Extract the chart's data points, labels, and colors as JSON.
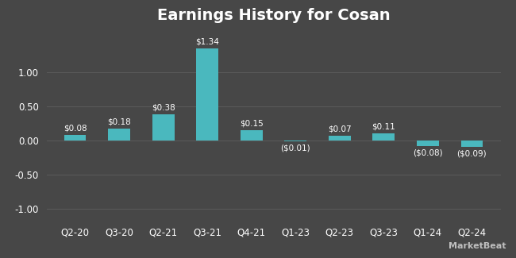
{
  "title": "Earnings History for Cosan",
  "categories": [
    "Q2-20",
    "Q3-20",
    "Q2-21",
    "Q3-21",
    "Q4-21",
    "Q1-23",
    "Q2-23",
    "Q3-23",
    "Q1-24",
    "Q2-24"
  ],
  "values": [
    0.08,
    0.18,
    0.38,
    1.34,
    0.15,
    -0.01,
    0.07,
    0.11,
    -0.08,
    -0.09
  ],
  "labels": [
    "$0.08",
    "$0.18",
    "$0.38",
    "$1.34",
    "$0.15",
    "($0.01)",
    "$0.07",
    "$0.11",
    "($0.08)",
    "($0.09)"
  ],
  "bar_color": "#4ab8be",
  "background_color": "#474747",
  "grid_color": "#5a5a5a",
  "text_color": "#ffffff",
  "title_fontsize": 14,
  "label_fontsize": 7.5,
  "tick_fontsize": 8.5,
  "ylim": [
    -1.15,
    1.6
  ],
  "yticks": [
    -1.0,
    -0.5,
    0.0,
    0.5,
    1.0
  ],
  "watermark": "MarketBeat"
}
